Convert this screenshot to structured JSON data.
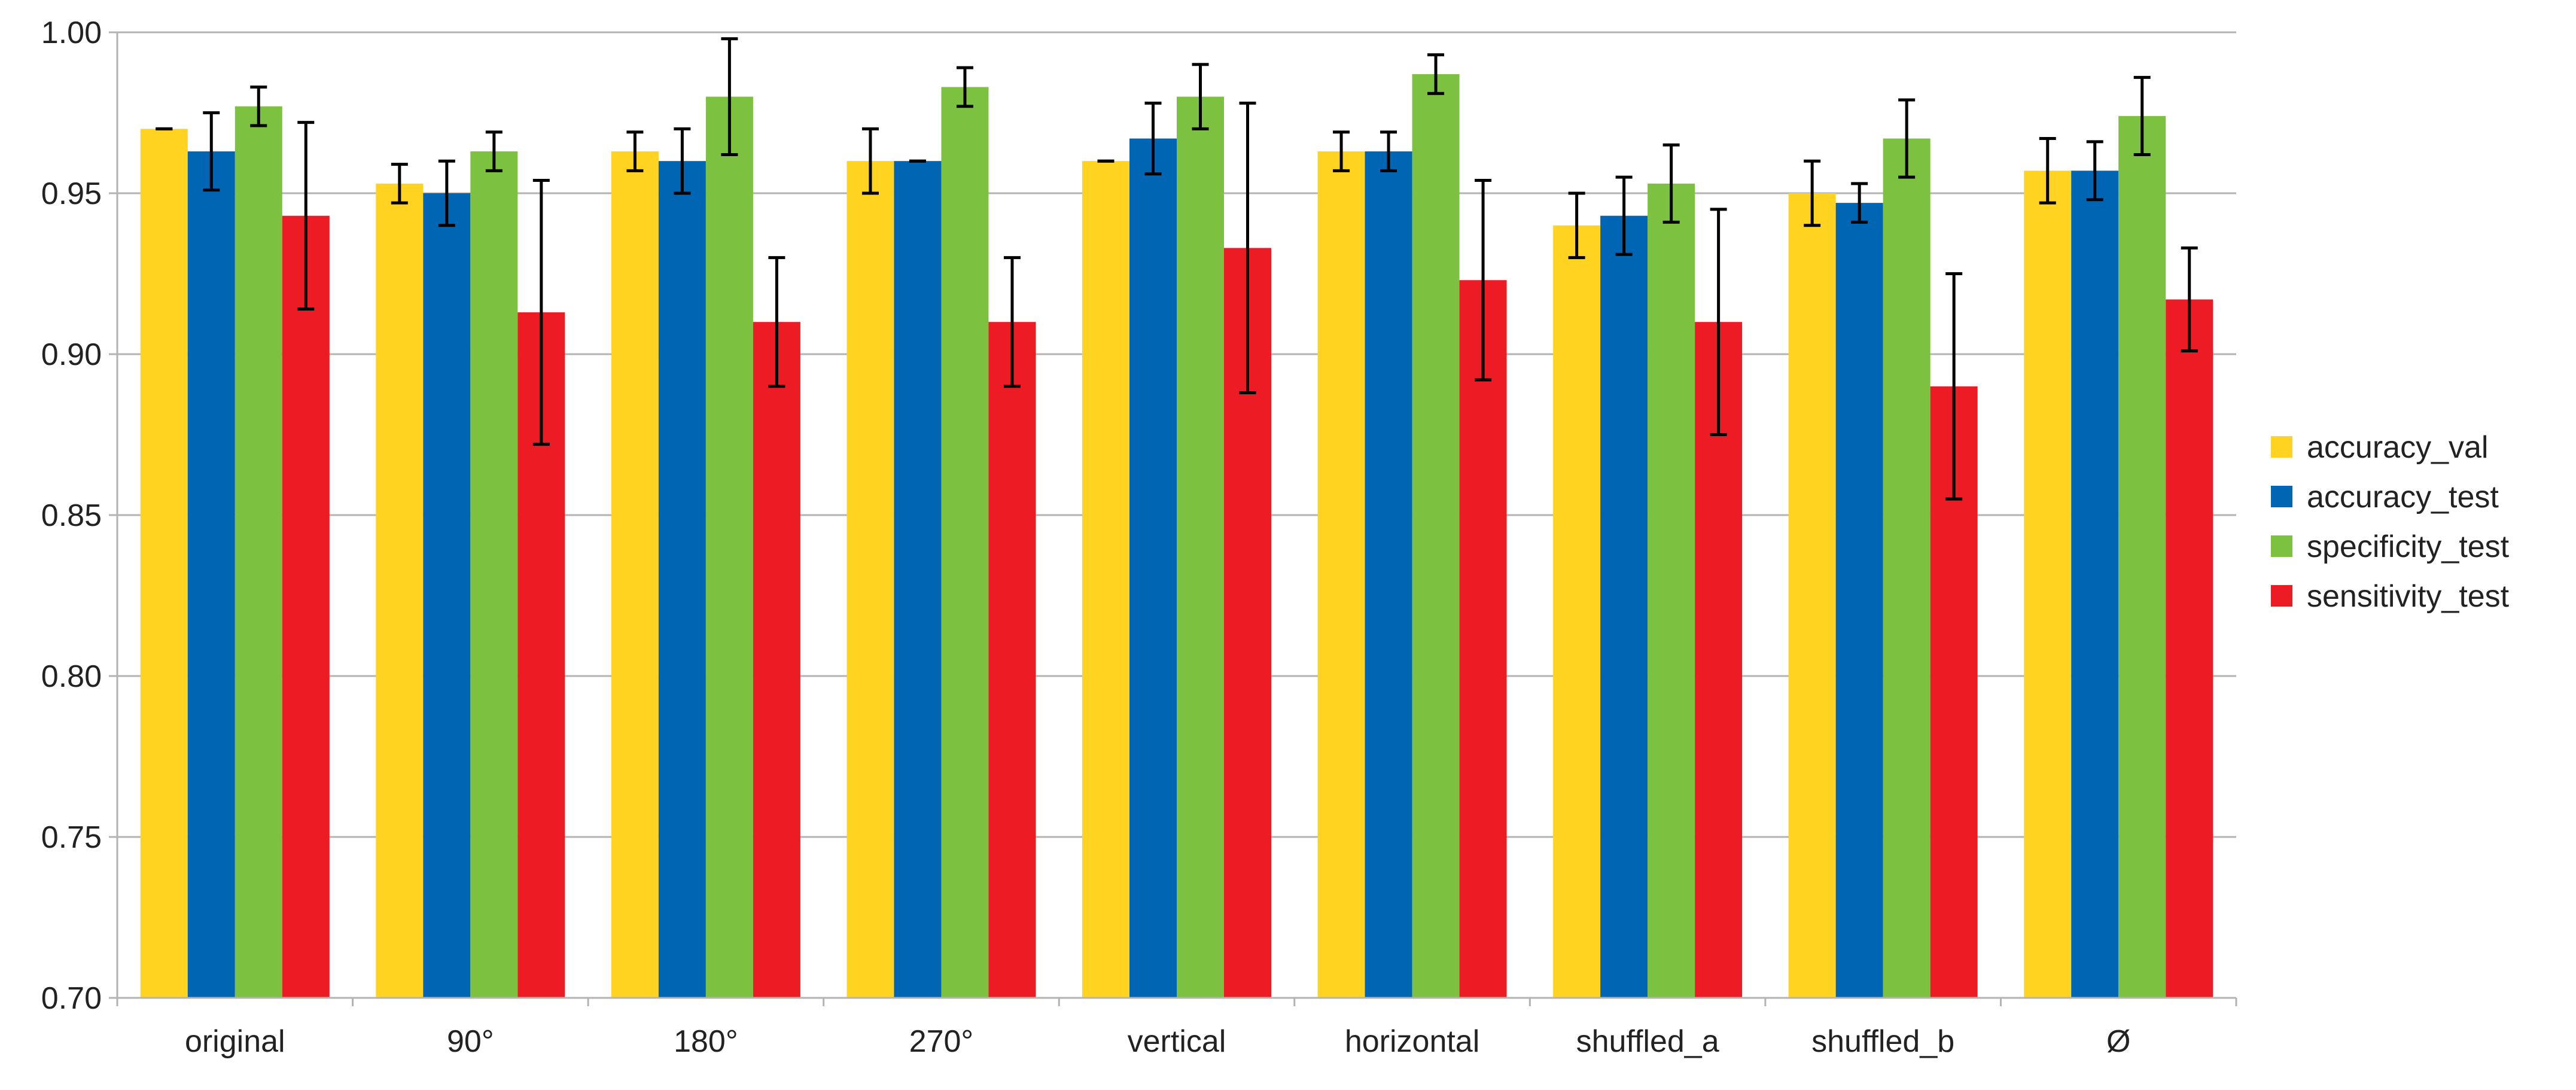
{
  "chart_data": {
    "type": "bar",
    "title": "",
    "xlabel": "",
    "ylabel": "",
    "ylim": [
      0.7,
      1.0
    ],
    "yticks": [
      "0.70",
      "0.75",
      "0.80",
      "0.85",
      "0.90",
      "0.95",
      "1.00"
    ],
    "ytick_values": [
      0.7,
      0.75,
      0.8,
      0.85,
      0.9,
      0.95,
      1.0
    ],
    "grid": "horizontal",
    "legend_position": "right",
    "categories": [
      "original",
      "90°",
      "180°",
      "270°",
      "vertical",
      "horizontal",
      "shuffled_a",
      "shuffled_b",
      "Ø"
    ],
    "series": [
      {
        "name": "accuracy_val",
        "color": "#ffd320",
        "values": [
          0.97,
          0.953,
          0.963,
          0.96,
          0.96,
          0.963,
          0.94,
          0.95,
          0.957
        ],
        "errors": [
          0.0,
          0.006,
          0.006,
          0.01,
          0.0,
          0.006,
          0.01,
          0.01,
          0.01
        ]
      },
      {
        "name": "accuracy_test",
        "color": "#0066b3",
        "values": [
          0.963,
          0.95,
          0.96,
          0.96,
          0.967,
          0.963,
          0.943,
          0.947,
          0.957
        ],
        "errors": [
          0.012,
          0.01,
          0.01,
          0.0,
          0.011,
          0.006,
          0.012,
          0.006,
          0.009
        ]
      },
      {
        "name": "specificity_test",
        "color": "#7cc140",
        "values": [
          0.977,
          0.963,
          0.98,
          0.983,
          0.98,
          0.987,
          0.953,
          0.967,
          0.974
        ],
        "errors": [
          0.006,
          0.006,
          0.018,
          0.006,
          0.01,
          0.006,
          0.012,
          0.012,
          0.012
        ]
      },
      {
        "name": "sensitivity_test",
        "color": "#ed1c24",
        "values": [
          0.943,
          0.913,
          0.91,
          0.91,
          0.933,
          0.923,
          0.91,
          0.89,
          0.917
        ],
        "errors": [
          0.029,
          0.041,
          0.02,
          0.02,
          0.045,
          0.031,
          0.035,
          0.035,
          0.016
        ]
      }
    ]
  }
}
